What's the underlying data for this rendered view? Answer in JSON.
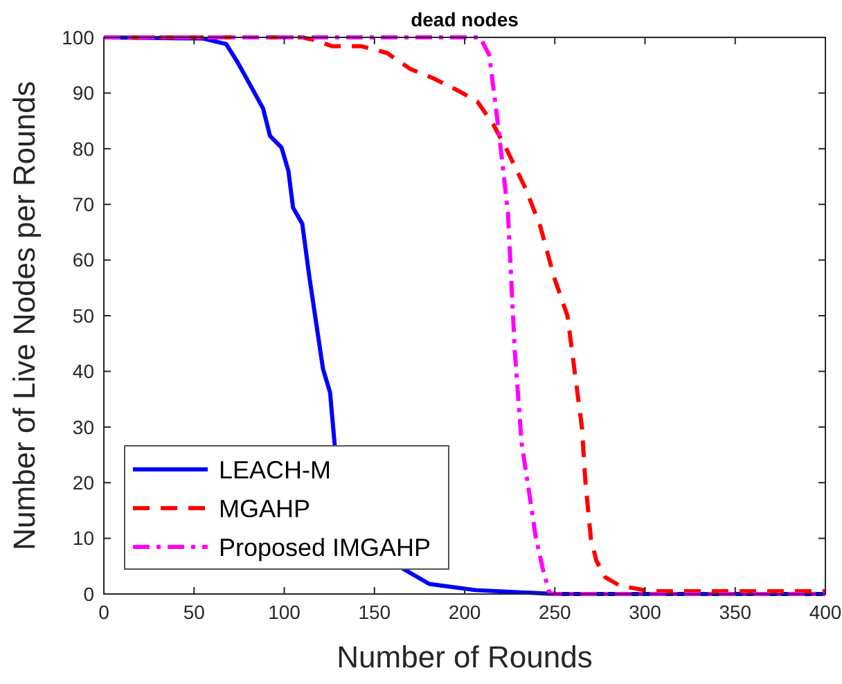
{
  "chart_data": {
    "type": "line",
    "title": "dead nodes",
    "xlabel": "Number of Rounds",
    "ylabel": "Number of Live Nodes per Rounds",
    "xlim": [
      0,
      400
    ],
    "ylim": [
      0,
      100
    ],
    "xticks": [
      0,
      50,
      100,
      150,
      200,
      250,
      300,
      350,
      400
    ],
    "yticks": [
      0,
      10,
      20,
      30,
      40,
      50,
      60,
      70,
      80,
      90,
      100
    ],
    "grid": false,
    "legend": "bottom left",
    "marker": "none",
    "series": [
      {
        "name": "LEACH-M",
        "color": "#0000ff",
        "line_style": "solid",
        "x": [
          0,
          55,
          67.8,
          74.2,
          81.9,
          88.3,
          92.1,
          98.5,
          102.3,
          104.9,
          110,
          113.9,
          117.7,
          121.5,
          125.4,
          128,
          133,
          138,
          160,
          165,
          180.4,
          206,
          250,
          400
        ],
        "values": [
          100,
          99.8,
          98.8,
          95.5,
          91,
          87.2,
          82.3,
          80.2,
          76,
          69.4,
          66.5,
          57,
          48.7,
          40.4,
          36.2,
          26.7,
          null,
          null,
          null,
          4.7,
          1.8,
          0.7,
          0,
          0
        ]
      },
      {
        "name": "MGAHP",
        "color": "#ff0000",
        "line_style": "dashed",
        "x": [
          0,
          110,
          117,
          126.7,
          143,
          157,
          170,
          183,
          196,
          207,
          216,
          224,
          234,
          242,
          249.5,
          257,
          261,
          265,
          267,
          270,
          273,
          278,
          286,
          303,
          400
        ],
        "values": [
          100,
          100,
          99.5,
          98.4,
          98.4,
          97.2,
          94.3,
          92.6,
          90.5,
          88.5,
          84.3,
          79.4,
          72.7,
          66,
          57,
          50,
          40,
          30,
          20,
          10,
          6,
          3,
          1.5,
          0.5,
          0.5
        ]
      },
      {
        "name": "Proposed IMGAHP",
        "color": "#ff00ff",
        "line_style": "dashdot",
        "x": [
          0,
          208.6,
          213.7,
          218.8,
          224,
          227.8,
          231.6,
          235.5,
          239.3,
          243.2,
          247,
          250,
          400
        ],
        "values": [
          100,
          100,
          96.8,
          83.5,
          68.6,
          43.7,
          27.1,
          18.8,
          10.5,
          4.7,
          0.2,
          0,
          0
        ]
      }
    ]
  }
}
